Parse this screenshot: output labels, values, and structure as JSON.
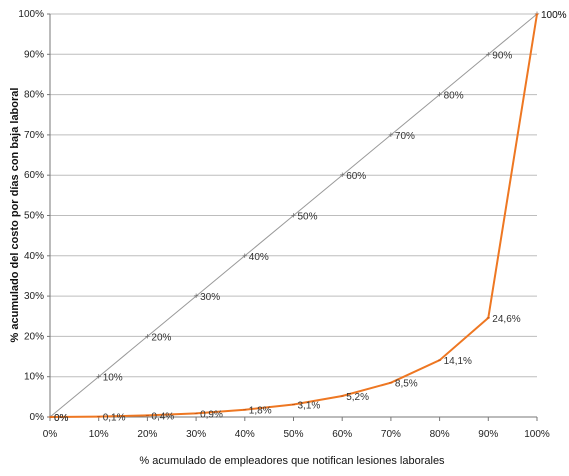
{
  "chart_data": {
    "type": "line",
    "title": "",
    "xlabel": "% acumulado de empleadores que notifican lesiones laborales",
    "ylabel": "% acumulado del costo por días con baja laboral",
    "x": [
      0,
      10,
      20,
      30,
      40,
      50,
      60,
      70,
      80,
      90,
      100
    ],
    "x_tick_labels": [
      "0%",
      "10%",
      "20%",
      "30%",
      "40%",
      "50%",
      "60%",
      "70%",
      "80%",
      "90%",
      "100%"
    ],
    "y_tick_labels": [
      "0%",
      "10%",
      "20%",
      "30%",
      "40%",
      "50%",
      "60%",
      "70%",
      "80%",
      "90%",
      "100%"
    ],
    "xlim": [
      0,
      100
    ],
    "ylim": [
      0,
      100
    ],
    "grid": "horizontal",
    "legend": "none",
    "series": [
      {
        "values": [
          0,
          10,
          20,
          30,
          40,
          50,
          60,
          70,
          80,
          90,
          100
        ],
        "labels": [
          "0%",
          "10%",
          "20%",
          "30%",
          "40%",
          "50%",
          "60%",
          "70%",
          "80%",
          "90%",
          "100%"
        ],
        "color": "#999999"
      },
      {
        "values": [
          0,
          0.1,
          0.4,
          0.9,
          1.8,
          3.1,
          5.2,
          8.5,
          14.1,
          24.6,
          100
        ],
        "labels": [
          "0%",
          "0,1%",
          "0,4%",
          "0,9%",
          "1,8%",
          "3,1%",
          "5,2%",
          "8,5%",
          "14,1%",
          "24,6%",
          "100%"
        ],
        "color": "#ee7722"
      }
    ]
  }
}
